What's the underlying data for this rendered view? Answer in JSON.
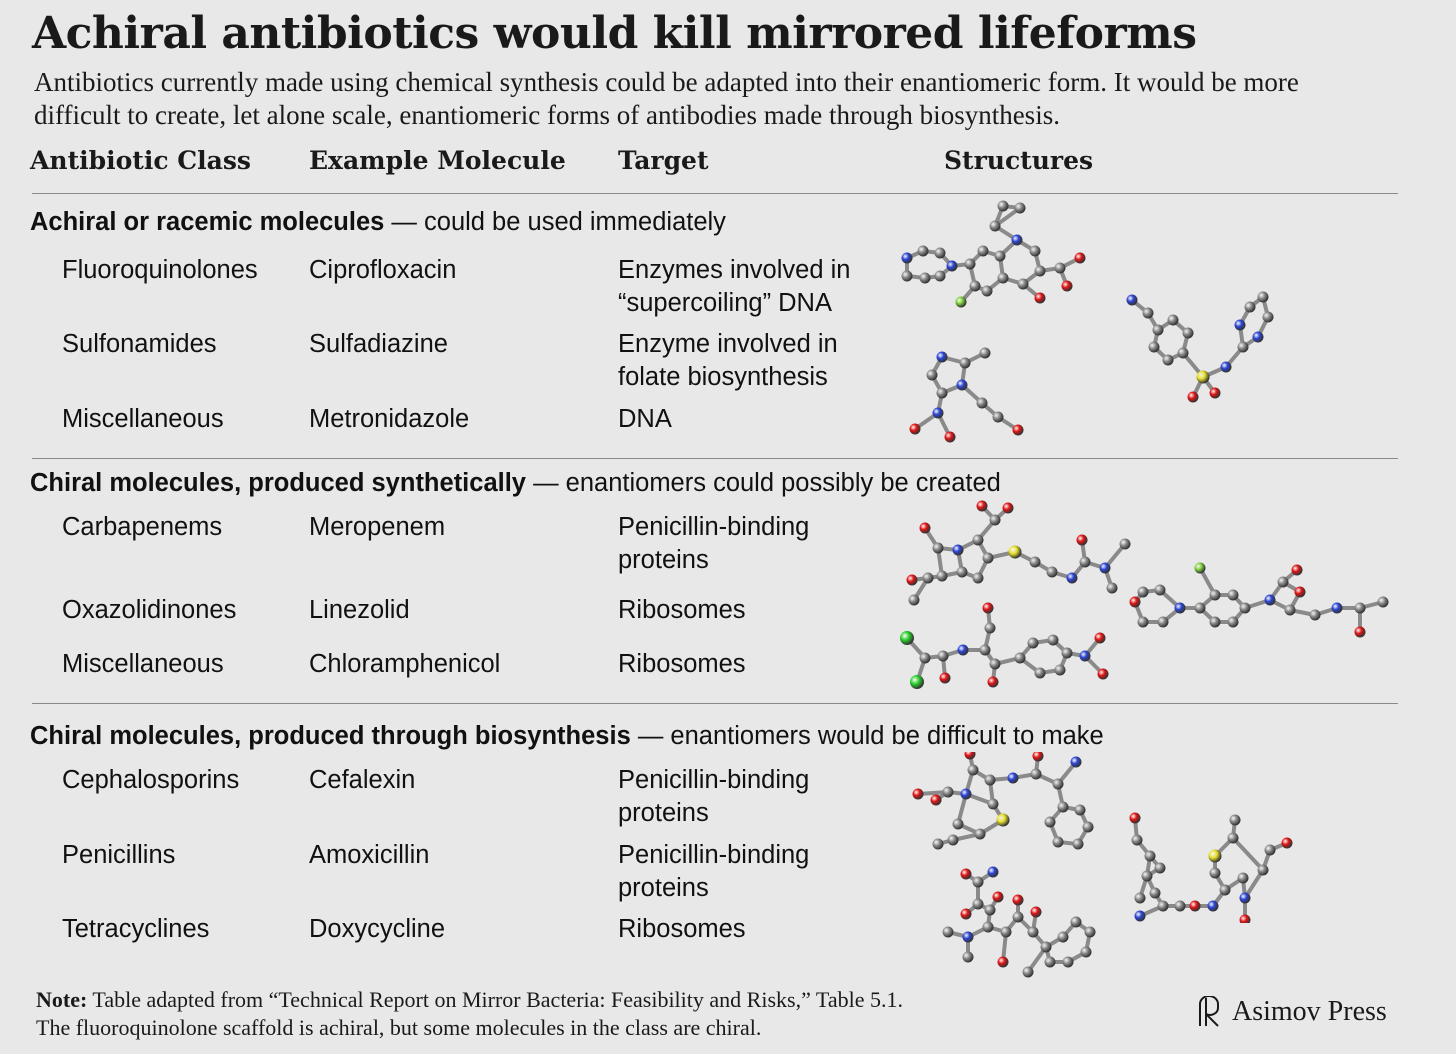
{
  "title": "Achiral antibiotics would kill mirrored lifeforms",
  "subtitle": "Antibiotics currently made using chemical synthesis could be adapted into their enantiomeric form. It would be more difficult to create, let alone scale, enantiomeric forms of antibodies made through biosynthesis.",
  "headers": {
    "class": "Antibiotic Class",
    "molecule": "Example Molecule",
    "target": "Target",
    "structures": "Structures"
  },
  "sections": [
    {
      "title": "Achiral or racemic molecules",
      "note": " — could be used immediately",
      "rows": [
        {
          "class": "Fluoroquinolones",
          "molecule": "Ciprofloxacin",
          "target_lines": [
            "Enzymes involved in",
            "“supercoiling” DNA"
          ]
        },
        {
          "class": "Sulfonamides",
          "molecule": "Sulfadiazine",
          "target_lines": [
            "Enzyme involved in",
            "folate biosynthesis"
          ]
        },
        {
          "class": "Miscellaneous",
          "molecule": "Metronidazole",
          "target_lines": [
            "DNA"
          ]
        }
      ]
    },
    {
      "title": "Chiral molecules, produced synthetically",
      "note": " — enantiomers could possibly be created",
      "rows": [
        {
          "class": "Carbapenems",
          "molecule": "Meropenem",
          "target_lines": [
            "Penicillin-binding",
            "proteins"
          ]
        },
        {
          "class": "Oxazolidinones",
          "molecule": "Linezolid",
          "target_lines": [
            "Ribosomes"
          ]
        },
        {
          "class": "Miscellaneous",
          "molecule": "Chloramphenicol",
          "target_lines": [
            "Ribosomes"
          ]
        }
      ]
    },
    {
      "title": "Chiral molecules, produced through biosynthesis",
      "note": " — enantiomers would be difficult to make",
      "rows": [
        {
          "class": "Cephalosporins",
          "molecule": "Cefalexin",
          "target_lines": [
            "Penicillin-binding",
            "proteins"
          ]
        },
        {
          "class": "Penicillins",
          "molecule": "Amoxicillin",
          "target_lines": [
            "Penicillin-binding",
            "proteins"
          ]
        },
        {
          "class": "Tetracyclines",
          "molecule": "Doxycycline",
          "target_lines": [
            "Ribosomes"
          ]
        }
      ]
    }
  ],
  "footnote": {
    "label": "Note:",
    "line1": " Table adapted from “Technical Report on Mirror Bacteria: Feasibility and Risks,” Table 5.1.",
    "line2": "The fluoroquinolone scaffold is achiral, but some molecules in the class are chiral."
  },
  "brand": "Asimov Press",
  "colors": {
    "background": "#e8e8e8",
    "carbon": "#8c8c8c",
    "oxygen": "#e31414",
    "nitrogen": "#2b45d6",
    "sulfur": "#e8e02a",
    "fluorine": "#7fd23a",
    "chlorine": "#2bd42b"
  },
  "molecule_icons": [
    "ciprofloxacin-structure",
    "sulfadiazine-structure",
    "metronidazole-structure",
    "meropenem-structure",
    "linezolid-structure",
    "chloramphenicol-structure",
    "cefalexin-structure",
    "amoxicillin-structure",
    "doxycycline-structure"
  ]
}
